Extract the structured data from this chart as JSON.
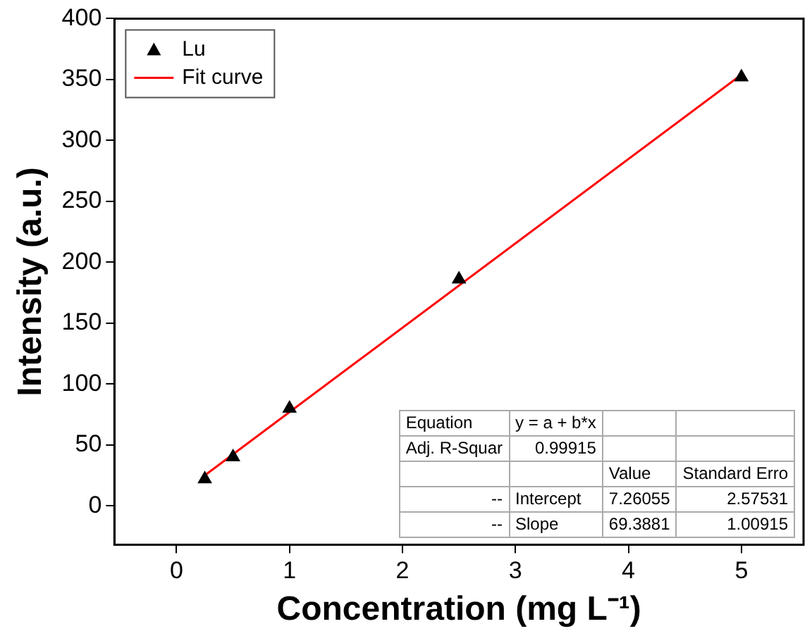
{
  "chart_data": {
    "type": "scatter",
    "xlabel": "Concentration (mg L⁻¹)",
    "ylabel": "Intensity (a.u.)",
    "xlim": [
      -0.55,
      5.55
    ],
    "xticks": [
      0,
      1,
      2,
      3,
      4,
      5
    ],
    "ylim": [
      -32,
      400
    ],
    "yticks": [
      0,
      50,
      100,
      150,
      200,
      250,
      300,
      350,
      400
    ],
    "grid": false,
    "legend": "top left",
    "marker": "triangle",
    "series": [
      {
        "name": "Lu",
        "color": "#000000",
        "x": [
          0.25,
          0.5,
          1,
          2.5,
          5
        ],
        "values": [
          22,
          40,
          80,
          186,
          352
        ]
      },
      {
        "name": "Fit curve",
        "type": "line",
        "marker": "none",
        "color": "#ff0000",
        "x": [
          0.25,
          5
        ],
        "values": [
          25,
          354
        ]
      }
    ],
    "annotations": [
      "Equation",
      "y = a + b*x",
      "Adj. R-Squar",
      "0.99915",
      "Value",
      "Standard Erro",
      "--",
      "Intercept",
      "7.26055",
      "2.57531",
      "--",
      "Slope",
      "69.3881",
      "1.00915"
    ]
  }
}
